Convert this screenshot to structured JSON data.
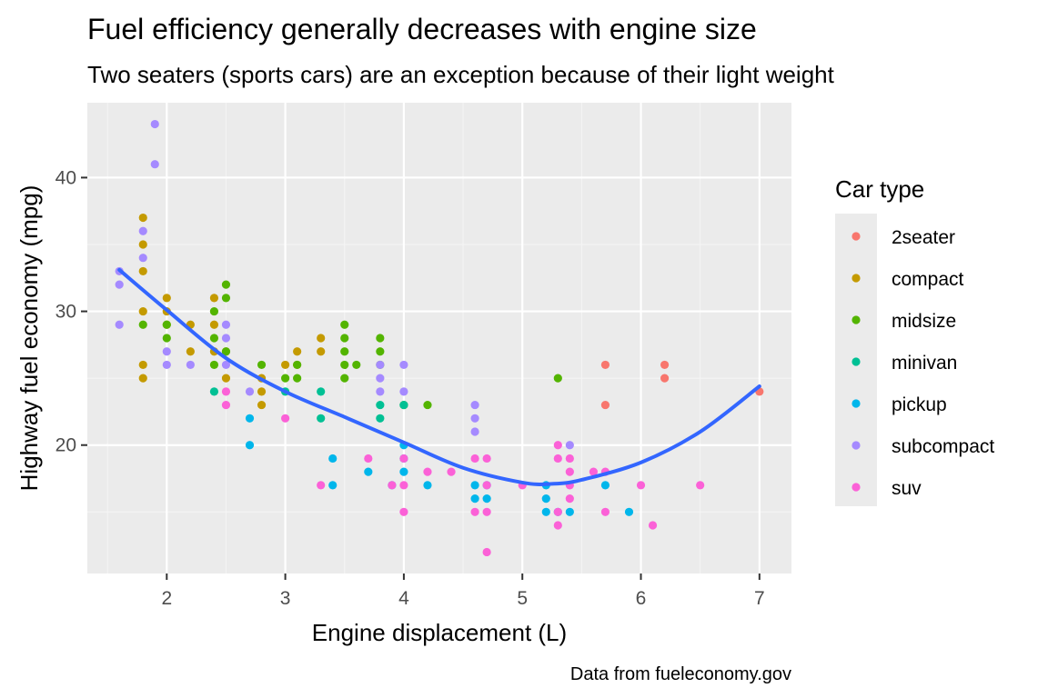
{
  "chart_data": {
    "type": "scatter",
    "title": "Fuel efficiency generally decreases with engine size",
    "subtitle": "Two seaters (sports cars) are an exception because of their light weight",
    "xlabel": "Engine displacement (L)",
    "ylabel": "Highway fuel economy (mpg)",
    "caption": "Data from fueleconomy.gov",
    "xlim": [
      1.33,
      7.27
    ],
    "ylim": [
      10.4,
      45.6
    ],
    "x_ticks": [
      2,
      3,
      4,
      5,
      6,
      7
    ],
    "y_ticks": [
      20,
      30,
      40
    ],
    "grid": true,
    "legend": {
      "title": "Car type",
      "placement": "right",
      "entries": [
        {
          "name": "2seater",
          "color": "#F8766D"
        },
        {
          "name": "compact",
          "color": "#C49A00"
        },
        {
          "name": "midsize",
          "color": "#53B400"
        },
        {
          "name": "minivan",
          "color": "#00C094"
        },
        {
          "name": "pickup",
          "color": "#00B6EB"
        },
        {
          "name": "subcompact",
          "color": "#A58AFF"
        },
        {
          "name": "suv",
          "color": "#FB61D7"
        }
      ]
    },
    "series": [
      {
        "name": "2seater",
        "points": [
          [
            5.7,
            26
          ],
          [
            5.7,
            23
          ],
          [
            6.2,
            26
          ],
          [
            6.2,
            25
          ],
          [
            7.0,
            24
          ]
        ]
      },
      {
        "name": "compact",
        "points": [
          [
            1.8,
            37
          ],
          [
            1.8,
            35
          ],
          [
            1.8,
            33
          ],
          [
            1.8,
            30
          ],
          [
            1.8,
            26
          ],
          [
            1.8,
            25
          ],
          [
            2.0,
            31
          ],
          [
            2.0,
            30
          ],
          [
            2.0,
            29
          ],
          [
            2.2,
            29
          ],
          [
            2.2,
            27
          ],
          [
            2.4,
            31
          ],
          [
            2.4,
            29
          ],
          [
            2.4,
            27
          ],
          [
            2.5,
            27
          ],
          [
            2.5,
            25
          ],
          [
            2.8,
            25
          ],
          [
            2.8,
            24
          ],
          [
            2.8,
            23
          ],
          [
            3.0,
            26
          ],
          [
            3.1,
            27
          ],
          [
            3.1,
            26
          ],
          [
            3.3,
            27
          ],
          [
            3.3,
            28
          ]
        ]
      },
      {
        "name": "midsize",
        "points": [
          [
            1.8,
            29
          ],
          [
            2.0,
            29
          ],
          [
            2.0,
            28
          ],
          [
            2.4,
            30
          ],
          [
            2.4,
            28
          ],
          [
            2.4,
            26
          ],
          [
            2.5,
            32
          ],
          [
            2.5,
            31
          ],
          [
            2.5,
            27
          ],
          [
            2.8,
            26
          ],
          [
            3.0,
            25
          ],
          [
            3.1,
            26
          ],
          [
            3.1,
            25
          ],
          [
            3.5,
            29
          ],
          [
            3.5,
            28
          ],
          [
            3.5,
            27
          ],
          [
            3.5,
            26
          ],
          [
            3.5,
            25
          ],
          [
            3.6,
            26
          ],
          [
            3.8,
            28
          ],
          [
            3.8,
            27
          ],
          [
            3.8,
            26
          ],
          [
            4.0,
            23
          ],
          [
            4.2,
            23
          ],
          [
            5.3,
            25
          ]
        ]
      },
      {
        "name": "minivan",
        "points": [
          [
            2.4,
            24
          ],
          [
            3.0,
            24
          ],
          [
            3.3,
            24
          ],
          [
            3.3,
            22
          ],
          [
            3.8,
            23
          ],
          [
            3.8,
            22
          ],
          [
            4.0,
            23
          ]
        ]
      },
      {
        "name": "pickup",
        "points": [
          [
            2.7,
            22
          ],
          [
            2.7,
            20
          ],
          [
            3.4,
            19
          ],
          [
            3.4,
            17
          ],
          [
            3.7,
            18
          ],
          [
            3.9,
            17
          ],
          [
            4.0,
            20
          ],
          [
            4.0,
            19
          ],
          [
            4.0,
            18
          ],
          [
            4.2,
            17
          ],
          [
            4.6,
            17
          ],
          [
            4.6,
            16
          ],
          [
            4.7,
            17
          ],
          [
            4.7,
            16
          ],
          [
            5.2,
            17
          ],
          [
            5.2,
            16
          ],
          [
            5.2,
            15
          ],
          [
            5.3,
            15
          ],
          [
            5.4,
            15
          ],
          [
            5.7,
            17
          ],
          [
            5.9,
            15
          ]
        ]
      },
      {
        "name": "subcompact",
        "points": [
          [
            1.6,
            33
          ],
          [
            1.6,
            32
          ],
          [
            1.6,
            29
          ],
          [
            1.8,
            36
          ],
          [
            1.8,
            34
          ],
          [
            1.9,
            44
          ],
          [
            1.9,
            41
          ],
          [
            2.0,
            27
          ],
          [
            2.0,
            26
          ],
          [
            2.2,
            26
          ],
          [
            2.5,
            29
          ],
          [
            2.5,
            28
          ],
          [
            2.5,
            26
          ],
          [
            2.7,
            24
          ],
          [
            3.8,
            26
          ],
          [
            3.8,
            25
          ],
          [
            3.8,
            24
          ],
          [
            4.0,
            26
          ],
          [
            4.0,
            24
          ],
          [
            4.6,
            23
          ],
          [
            4.6,
            22
          ],
          [
            4.6,
            21
          ],
          [
            5.4,
            20
          ]
        ]
      },
      {
        "name": "suv",
        "points": [
          [
            2.5,
            24
          ],
          [
            2.5,
            23
          ],
          [
            3.0,
            22
          ],
          [
            3.3,
            17
          ],
          [
            3.7,
            19
          ],
          [
            3.9,
            17
          ],
          [
            4.0,
            19
          ],
          [
            4.0,
            17
          ],
          [
            4.0,
            15
          ],
          [
            4.2,
            18
          ],
          [
            4.4,
            18
          ],
          [
            4.6,
            19
          ],
          [
            4.6,
            15
          ],
          [
            4.7,
            19
          ],
          [
            4.7,
            17
          ],
          [
            4.7,
            15
          ],
          [
            4.7,
            12
          ],
          [
            5.0,
            17
          ],
          [
            5.3,
            20
          ],
          [
            5.3,
            19
          ],
          [
            5.3,
            15
          ],
          [
            5.3,
            14
          ],
          [
            5.4,
            19
          ],
          [
            5.4,
            18
          ],
          [
            5.4,
            17
          ],
          [
            5.4,
            16
          ],
          [
            5.6,
            18
          ],
          [
            5.7,
            18
          ],
          [
            5.7,
            15
          ],
          [
            6.0,
            17
          ],
          [
            6.1,
            14
          ],
          [
            6.5,
            17
          ]
        ]
      }
    ],
    "smooth": {
      "name": "trend",
      "color": "#3366FF",
      "points": [
        [
          1.6,
          33.1
        ],
        [
          2.0,
          30.1
        ],
        [
          2.5,
          26.5
        ],
        [
          3.0,
          24.0
        ],
        [
          3.5,
          22.1
        ],
        [
          4.0,
          20.2
        ],
        [
          4.5,
          18.3
        ],
        [
          5.0,
          17.2
        ],
        [
          5.25,
          17.1
        ],
        [
          5.5,
          17.4
        ],
        [
          6.0,
          18.7
        ],
        [
          6.5,
          21.0
        ],
        [
          7.0,
          24.4
        ]
      ]
    }
  }
}
